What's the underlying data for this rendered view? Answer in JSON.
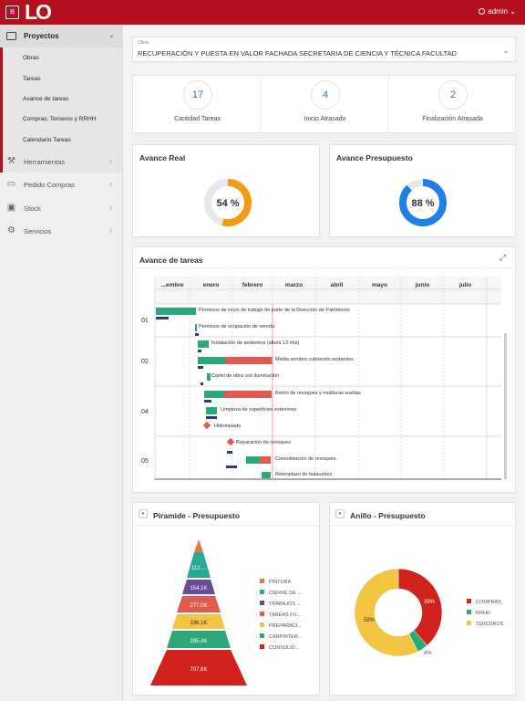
{
  "topbar": {
    "menu_icon": "hamburger-icon",
    "logo": "LO",
    "user": "admin",
    "user_chevron": "⌄"
  },
  "sidebar": {
    "active_section": "Proyectos",
    "sub_items": [
      "Obras",
      "Tareas",
      "Avance de tareas",
      "Compras, Terceros y RRHH",
      "Calendario Tareas"
    ],
    "items": [
      {
        "label": "Herramientas",
        "icon": "wrench-icon"
      },
      {
        "label": "Pedido Compras",
        "icon": "cart-icon"
      },
      {
        "label": "Stock",
        "icon": "box-icon"
      },
      {
        "label": "Servicios",
        "icon": "gear-icon"
      }
    ],
    "chevron": "›",
    "chevron_down": "⌄"
  },
  "obra": {
    "label": "Obra",
    "value": "RECUPERACIÓN Y PUESTA EN VALOR FACHADA SECRETARIA DE CIENCIA Y TÉCNICA FACULTAD",
    "chevron": "⌄"
  },
  "stats": [
    {
      "value": "17",
      "label": "Cantidad Tareas"
    },
    {
      "value": "4",
      "label": "Inicio Atrasado"
    },
    {
      "value": "2",
      "label": "Finalización Atrasada"
    }
  ],
  "avance_real": {
    "title": "Avance Real",
    "value_text": "54 %",
    "percent": 54,
    "color": "#f39c12"
  },
  "avance_presupuesto": {
    "title": "Avance Presupuesto",
    "value_text": "88 %",
    "percent": 88,
    "color": "#1e7fe6"
  },
  "gantt": {
    "title": "Avance de tareas",
    "months": [
      "...embre",
      "enero",
      "febrero",
      "marzo",
      "abril",
      "mayo",
      "junio",
      "julio"
    ],
    "groups": [
      "01",
      "02",
      "04",
      "05"
    ],
    "tasks": [
      "Permisos de inicio de trabajo de parte de la Dirección de Patrimonio",
      "Permisos de ocupación de vereda",
      "Instalación de andamios (altura 13 mts)",
      "Media sombra cubriendo andamios",
      "Cartel de obra con iluminación",
      "Retiro de revoques y molduras sueltas",
      "Limpieza de superficies exteriores",
      "Hidrolavado",
      "Reparación de revoques",
      "Consolidación de revoques.",
      "Reemplazo de balaustres"
    ]
  },
  "piramide": {
    "title": "Piramide - Presupuesto",
    "dd_icon": "▾",
    "legend": [
      {
        "label": "PINTURA",
        "color": "#e67e3a"
      },
      {
        "label": "CIERRE DE ...",
        "color": "#2aa89a"
      },
      {
        "label": "TRABAJOS ...",
        "color": "#6c4a9a"
      },
      {
        "label": "TAREAS FU...",
        "color": "#e05a4f"
      },
      {
        "label": "PREPARACI...",
        "color": "#f4c542"
      },
      {
        "label": "CARPINTER...",
        "color": "#2aa87a"
      },
      {
        "label": "CONSOLID...",
        "color": "#d0211c"
      }
    ],
    "values": [
      "112....",
      "154,1K",
      "277,0K",
      "196,1K",
      "285,4K",
      "707,6K"
    ]
  },
  "anillo": {
    "title": "Anillo - Presupuesto",
    "dd_icon": "▾",
    "slices": [
      {
        "label": "COMPRAS",
        "percent": 39,
        "color": "#d0211c",
        "text": "39%"
      },
      {
        "label": "RRHH",
        "percent": 4,
        "color": "#2aa87a",
        "text": "4%"
      },
      {
        "label": "TERCEROS",
        "percent": 58,
        "color": "#f4c542",
        "text": "58%"
      }
    ]
  }
}
